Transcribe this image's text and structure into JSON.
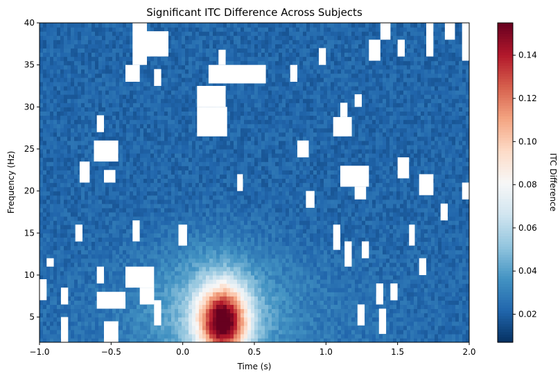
{
  "chart_data": {
    "type": "heatmap",
    "title": "Significant ITC Difference Across Subjects",
    "xlabel": "Time (s)",
    "ylabel": "Frequency (Hz)",
    "xlim": [
      -1.0,
      2.0
    ],
    "ylim": [
      2,
      40
    ],
    "xticks": [
      {
        "value": -1.0,
        "label": "−1.0"
      },
      {
        "value": -0.5,
        "label": "−0.5"
      },
      {
        "value": 0.0,
        "label": "0.0"
      },
      {
        "value": 0.5,
        "label": "0.5"
      },
      {
        "value": 1.0,
        "label": "1.0"
      },
      {
        "value": 1.5,
        "label": "1.5"
      },
      {
        "value": 2.0,
        "label": "2.0"
      }
    ],
    "yticks": [
      {
        "value": 5,
        "label": "5"
      },
      {
        "value": 10,
        "label": "10"
      },
      {
        "value": 15,
        "label": "15"
      },
      {
        "value": 20,
        "label": "20"
      },
      {
        "value": 25,
        "label": "25"
      },
      {
        "value": 30,
        "label": "30"
      },
      {
        "value": 35,
        "label": "35"
      },
      {
        "value": 40,
        "label": "40"
      }
    ],
    "colorbar": {
      "label": "ITC Difference",
      "colormap": "RdBu_r",
      "range": [
        0.007,
        0.155
      ],
      "ticks": [
        {
          "value": 0.02,
          "label": "0.02"
        },
        {
          "value": 0.04,
          "label": "0.04"
        },
        {
          "value": 0.06,
          "label": "0.06"
        },
        {
          "value": 0.08,
          "label": "0.08"
        },
        {
          "value": 0.1,
          "label": "0.10"
        },
        {
          "value": 0.12,
          "label": "0.12"
        },
        {
          "value": 0.14,
          "label": "0.14"
        }
      ]
    },
    "background_level": 0.022,
    "peak": {
      "time": 0.28,
      "freq": 4.5,
      "value": 0.15
    },
    "masked_regions": [
      {
        "t": [
          -0.35,
          -0.25
        ],
        "f": [
          35.0,
          40.0
        ]
      },
      {
        "t": [
          -0.25,
          -0.1
        ],
        "f": [
          36.0,
          39.0
        ]
      },
      {
        "t": [
          -0.2,
          -0.15
        ],
        "f": [
          32.5,
          34.5
        ]
      },
      {
        "t": [
          0.18,
          0.58
        ],
        "f": [
          32.8,
          35.0
        ]
      },
      {
        "t": [
          0.25,
          0.3
        ],
        "f": [
          35.0,
          36.8
        ]
      },
      {
        "t": [
          0.1,
          0.3
        ],
        "f": [
          30.0,
          32.5
        ]
      },
      {
        "t": [
          0.1,
          0.31
        ],
        "f": [
          26.5,
          30.0
        ]
      },
      {
        "t": [
          0.75,
          0.8
        ],
        "f": [
          33.0,
          35.0
        ]
      },
      {
        "t": [
          -0.4,
          -0.3
        ],
        "f": [
          33.0,
          35.0
        ]
      },
      {
        "t": [
          1.38,
          1.45
        ],
        "f": [
          38.0,
          40.0
        ]
      },
      {
        "t": [
          1.3,
          1.38
        ],
        "f": [
          35.5,
          38.0
        ]
      },
      {
        "t": [
          1.5,
          1.55
        ],
        "f": [
          36.0,
          38.0
        ]
      },
      {
        "t": [
          1.83,
          1.9
        ],
        "f": [
          38.0,
          40.0
        ]
      },
      {
        "t": [
          1.95,
          2.0
        ],
        "f": [
          35.5,
          40.0
        ]
      },
      {
        "t": [
          1.05,
          1.18
        ],
        "f": [
          26.5,
          28.8
        ]
      },
      {
        "t": [
          1.1,
          1.15
        ],
        "f": [
          28.8,
          30.5
        ]
      },
      {
        "t": [
          1.2,
          1.25
        ],
        "f": [
          30.0,
          31.5
        ]
      },
      {
        "t": [
          0.8,
          0.88
        ],
        "f": [
          24.0,
          26.0
        ]
      },
      {
        "t": [
          -0.62,
          -0.45
        ],
        "f": [
          23.5,
          26.0
        ]
      },
      {
        "t": [
          -0.72,
          -0.65
        ],
        "f": [
          21.0,
          23.5
        ]
      },
      {
        "t": [
          -0.55,
          -0.47
        ],
        "f": [
          21.0,
          22.5
        ]
      },
      {
        "t": [
          -0.6,
          -0.55
        ],
        "f": [
          27.0,
          29.0
        ]
      },
      {
        "t": [
          1.1,
          1.3
        ],
        "f": [
          20.5,
          23.0
        ]
      },
      {
        "t": [
          1.2,
          1.28
        ],
        "f": [
          19.0,
          20.5
        ]
      },
      {
        "t": [
          1.5,
          1.58
        ],
        "f": [
          21.5,
          24.0
        ]
      },
      {
        "t": [
          1.65,
          1.75
        ],
        "f": [
          19.5,
          22.0
        ]
      },
      {
        "t": [
          1.95,
          2.0
        ],
        "f": [
          19.0,
          21.0
        ]
      },
      {
        "t": [
          1.8,
          1.85
        ],
        "f": [
          16.5,
          18.5
        ]
      },
      {
        "t": [
          -0.6,
          -0.4
        ],
        "f": [
          6.0,
          8.0
        ]
      },
      {
        "t": [
          -0.4,
          -0.2
        ],
        "f": [
          8.5,
          11.0
        ]
      },
      {
        "t": [
          -0.3,
          -0.2
        ],
        "f": [
          6.5,
          8.5
        ]
      },
      {
        "t": [
          -0.55,
          -0.45
        ],
        "f": [
          2.0,
          4.5
        ]
      },
      {
        "t": [
          -0.85,
          -0.8
        ],
        "f": [
          2.0,
          5.0
        ]
      },
      {
        "t": [
          -1.0,
          -0.95
        ],
        "f": [
          7.0,
          9.5
        ]
      },
      {
        "t": [
          -0.85,
          -0.8
        ],
        "f": [
          6.5,
          8.5
        ]
      },
      {
        "t": [
          -0.95,
          -0.9
        ],
        "f": [
          11.0,
          12.0
        ]
      },
      {
        "t": [
          -0.03,
          0.03
        ],
        "f": [
          13.5,
          16.0
        ]
      },
      {
        "t": [
          -0.75,
          -0.7
        ],
        "f": [
          14.0,
          16.0
        ]
      },
      {
        "t": [
          -0.35,
          -0.3
        ],
        "f": [
          14.0,
          16.5
        ]
      },
      {
        "t": [
          0.86,
          0.92
        ],
        "f": [
          18.0,
          20.0
        ]
      },
      {
        "t": [
          0.38,
          0.42
        ],
        "f": [
          20.0,
          22.0
        ]
      },
      {
        "t": [
          1.22,
          1.27
        ],
        "f": [
          4.0,
          6.5
        ]
      },
      {
        "t": [
          1.37,
          1.42
        ],
        "f": [
          3.0,
          6.0
        ]
      },
      {
        "t": [
          1.35,
          1.4
        ],
        "f": [
          6.5,
          9.0
        ]
      },
      {
        "t": [
          1.45,
          1.5
        ],
        "f": [
          7.0,
          9.0
        ]
      },
      {
        "t": [
          1.65,
          1.7
        ],
        "f": [
          10.0,
          12.0
        ]
      },
      {
        "t": [
          1.58,
          1.62
        ],
        "f": [
          13.5,
          16.0
        ]
      },
      {
        "t": [
          1.05,
          1.1
        ],
        "f": [
          13.0,
          16.0
        ]
      },
      {
        "t": [
          1.13,
          1.18
        ],
        "f": [
          11.0,
          14.0
        ]
      },
      {
        "t": [
          1.25,
          1.3
        ],
        "f": [
          12.0,
          14.0
        ]
      },
      {
        "t": [
          1.7,
          1.75
        ],
        "f": [
          36.0,
          40.0
        ]
      },
      {
        "t": [
          0.95,
          1.0
        ],
        "f": [
          35.0,
          37.0
        ]
      },
      {
        "t": [
          -0.6,
          -0.55
        ],
        "f": [
          9.0,
          11.0
        ]
      },
      {
        "t": [
          -0.2,
          -0.15
        ],
        "f": [
          4.0,
          7.0
        ]
      }
    ]
  }
}
